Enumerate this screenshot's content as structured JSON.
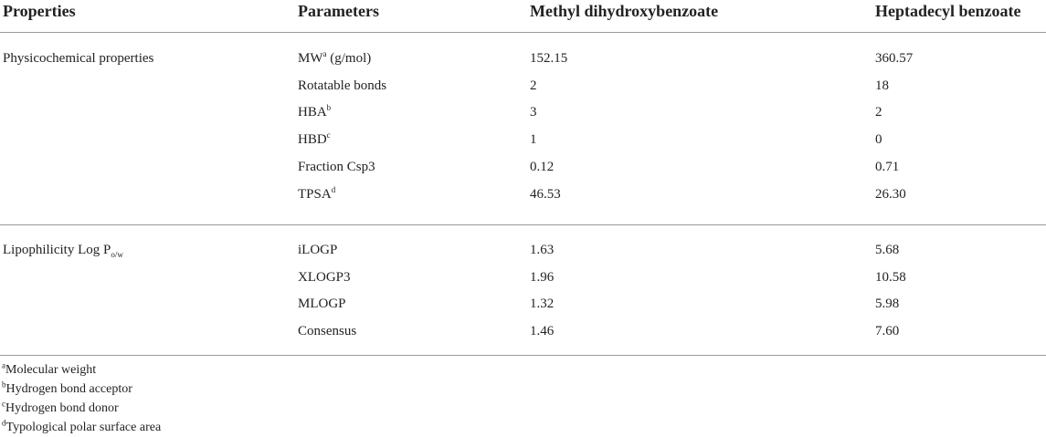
{
  "table": {
    "headers": [
      "Properties",
      "Parameters",
      "Methyl dihydroxybenzoate",
      "Heptadecyl benzoate"
    ],
    "groups": [
      {
        "label": "Physicochemical properties",
        "rows": [
          [
            {
              "text": "MW",
              "sup": "a",
              "suffix": " (g/mol)"
            },
            "152.15",
            "360.57"
          ],
          [
            "Rotatable bonds",
            "2",
            "18"
          ],
          [
            {
              "text": "HBA",
              "sup": "b"
            },
            "3",
            "2"
          ],
          [
            {
              "text": "HBD",
              "sup": "c"
            },
            "1",
            "0"
          ],
          [
            "Fraction Csp3",
            "0.12",
            "0.71"
          ],
          [
            {
              "text": "TPSA",
              "sup": "d"
            },
            "46.53",
            "26.30"
          ]
        ]
      },
      {
        "label": {
          "text": "Lipophilicity Log P",
          "sub": "o/w"
        },
        "rows": [
          [
            "iLOGP",
            "1.63",
            "5.68"
          ],
          [
            "XLOGP3",
            "1.96",
            "10.58"
          ],
          [
            "MLOGP",
            "1.32",
            "5.98"
          ],
          [
            "Consensus",
            "1.46",
            "7.60"
          ]
        ]
      }
    ],
    "footnotes": [
      {
        "sup": "a",
        "text": "Molecular weight"
      },
      {
        "sup": "b",
        "text": "Hydrogen bond acceptor"
      },
      {
        "sup": "c",
        "text": "Hydrogen bond donor"
      },
      {
        "sup": "d",
        "text": "Typological polar surface area"
      }
    ]
  }
}
